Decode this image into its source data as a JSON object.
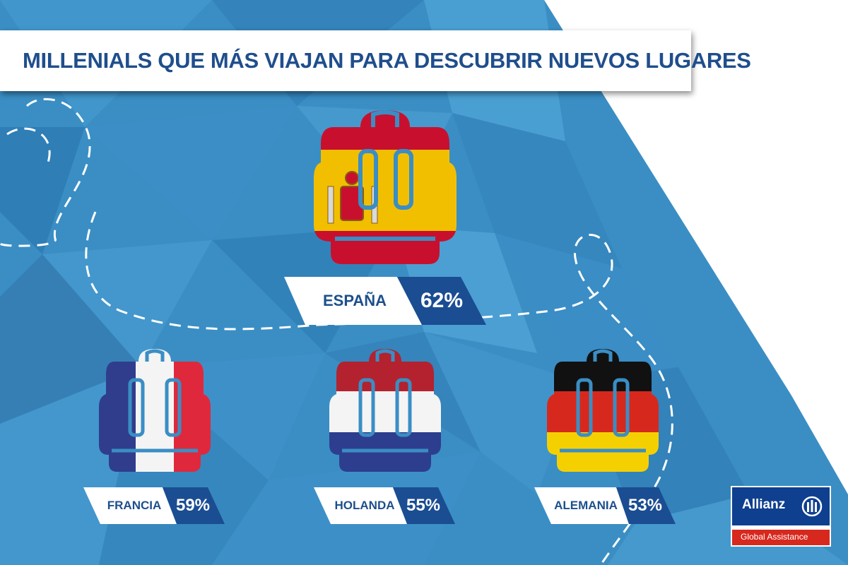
{
  "title": "MILLENIALS QUE MÁS VIAJAN PARA DESCUBRIR NUEVOS LUGARES",
  "colors": {
    "background_blue": "#3a8ec4",
    "title_text": "#1f4e8c",
    "label_dark_blue": "#1b4d92",
    "country_text": "#1d4f8c",
    "dashed_path": "#ffffff"
  },
  "countries": [
    {
      "name": "ESPAÑA",
      "percent": "62%",
      "value": 62,
      "flag": "spain",
      "icon": "backpack-icon"
    },
    {
      "name": "FRANCIA",
      "percent": "59%",
      "value": 59,
      "flag": "france",
      "icon": "backpack-icon"
    },
    {
      "name": "HOLANDA",
      "percent": "55%",
      "value": 55,
      "flag": "netherlands",
      "icon": "backpack-icon"
    },
    {
      "name": "ALEMANIA",
      "percent": "53%",
      "value": 53,
      "flag": "germany",
      "icon": "backpack-icon"
    }
  ],
  "logo": {
    "brand": "Allianz",
    "subtitle": "Global Assistance",
    "brand_color": "#0f3f8f",
    "accent_color": "#d7281e"
  }
}
